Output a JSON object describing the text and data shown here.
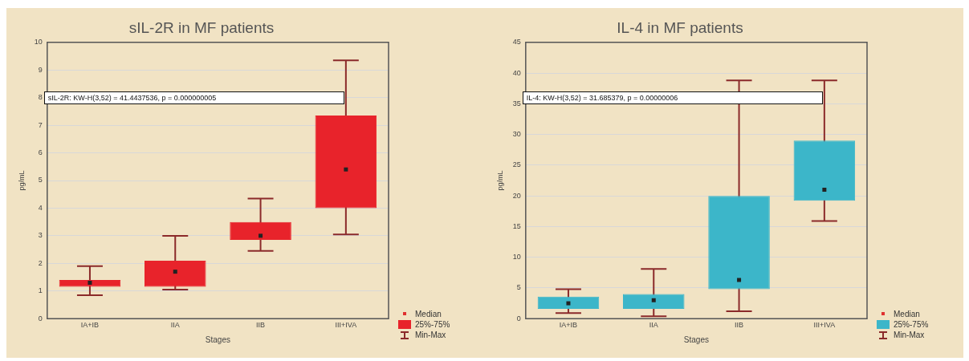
{
  "chart_data": [
    {
      "type": "box",
      "title": "sIL-2R in MF patients",
      "xlabel": "Stages",
      "ylabel": "pg/mL",
      "categories": [
        "IA+IB",
        "IIA",
        "IIB",
        "III+IVA"
      ],
      "color": "#e8232b",
      "ylim": [
        0,
        10
      ],
      "yticks": [
        0,
        1,
        2,
        3,
        4,
        5,
        6,
        7,
        8,
        9,
        10
      ],
      "grid": "y",
      "marker": "square",
      "boxes": [
        {
          "low": 0.85,
          "q1": 1.15,
          "median": 1.3,
          "q3": 1.4,
          "high": 1.9
        },
        {
          "low": 1.05,
          "q1": 1.15,
          "median": 1.7,
          "q3": 2.1,
          "high": 3.0
        },
        {
          "low": 2.45,
          "q1": 2.85,
          "median": 3.0,
          "q3": 3.5,
          "high": 4.35
        },
        {
          "low": 3.05,
          "q1": 4.0,
          "median": 5.4,
          "q3": 7.35,
          "high": 9.35
        }
      ],
      "annotations": [
        "sIL-2R: KW-H(3,52) = 41.4437536, p = 0.000000005",
        "Median",
        "25%-75%",
        "Min-Max"
      ]
    },
    {
      "type": "box",
      "title": "IL-4 in MF patients",
      "xlabel": "Stages",
      "ylabel": "pg/mL",
      "categories": [
        "IA+IB",
        "IIA",
        "IIB",
        "III+IVA"
      ],
      "color": "#3cb6c9",
      "ylim": [
        0,
        45
      ],
      "yticks": [
        0,
        5,
        10,
        15,
        20,
        25,
        30,
        35,
        40,
        45
      ],
      "grid": "y",
      "marker": "square",
      "boxes": [
        {
          "low": 0.9,
          "q1": 1.6,
          "median": 2.5,
          "q3": 3.6,
          "high": 4.8
        },
        {
          "low": 0.4,
          "q1": 1.6,
          "median": 3.0,
          "q3": 4.0,
          "high": 8.1
        },
        {
          "low": 1.2,
          "q1": 4.8,
          "median": 6.3,
          "q3": 20.0,
          "high": 38.8
        },
        {
          "low": 15.9,
          "q1": 19.2,
          "median": 21.0,
          "q3": 29.0,
          "high": 38.8
        }
      ],
      "annotations": [
        "IL-4: KW-H(3,52) = 31.685379, p = 0.00000006",
        "Median",
        "25%-75%",
        "Min-Max"
      ]
    }
  ]
}
